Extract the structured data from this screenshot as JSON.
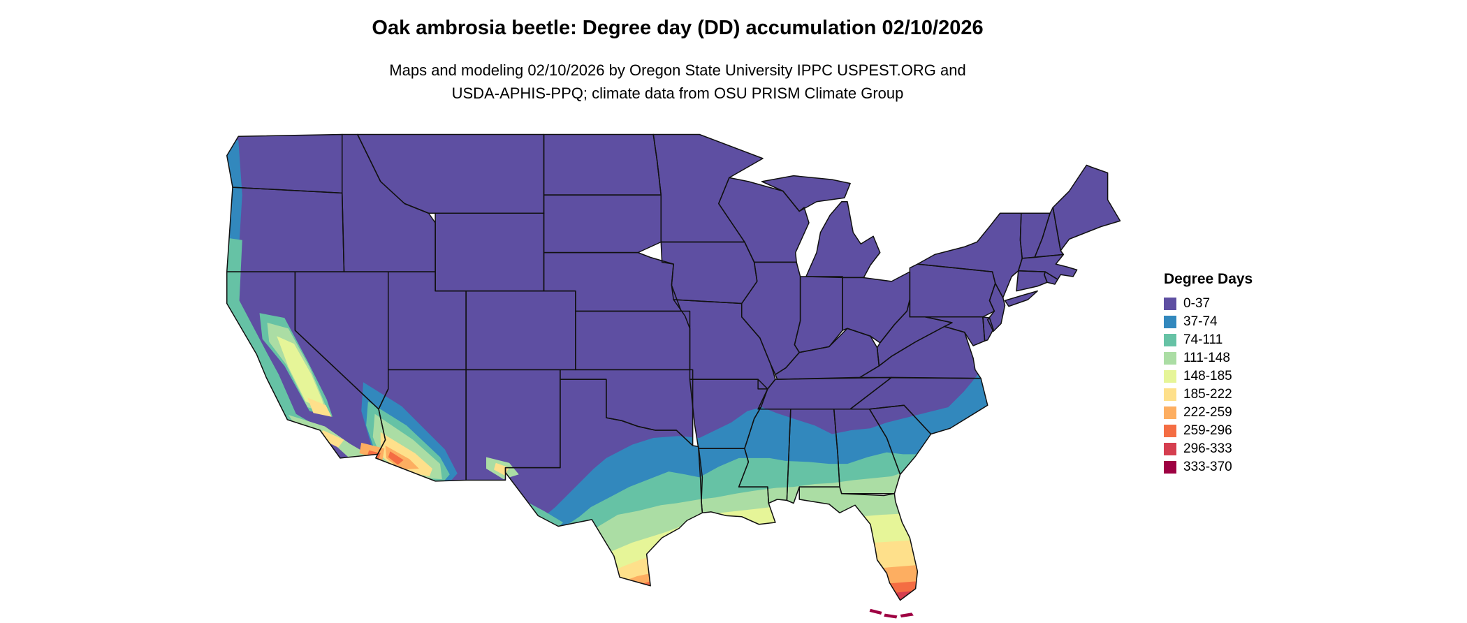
{
  "page": {
    "title": "Oak ambrosia beetle: Degree day (DD) accumulation 02/10/2026",
    "subtitle_line1": "Maps and modeling 02/10/2026 by Oregon State University IPPC USPEST.ORG and",
    "subtitle_line2": "USDA-APHIS-PPQ; climate data from OSU PRISM Climate Group"
  },
  "legend": {
    "title": "Degree Days",
    "items": [
      {
        "label": "0-37",
        "color": "#5e4fa2"
      },
      {
        "label": "37-74",
        "color": "#3288bd"
      },
      {
        "label": "74-111",
        "color": "#66c2a5"
      },
      {
        "label": "111-148",
        "color": "#abdda4"
      },
      {
        "label": "148-185",
        "color": "#e6f598"
      },
      {
        "label": "185-222",
        "color": "#fee08b"
      },
      {
        "label": "222-259",
        "color": "#fdae61"
      },
      {
        "label": "259-296",
        "color": "#f46d43"
      },
      {
        "label": "296-333",
        "color": "#d53e4f"
      },
      {
        "label": "333-370",
        "color": "#9e0142"
      }
    ]
  },
  "map": {
    "border_color": "#111111"
  }
}
